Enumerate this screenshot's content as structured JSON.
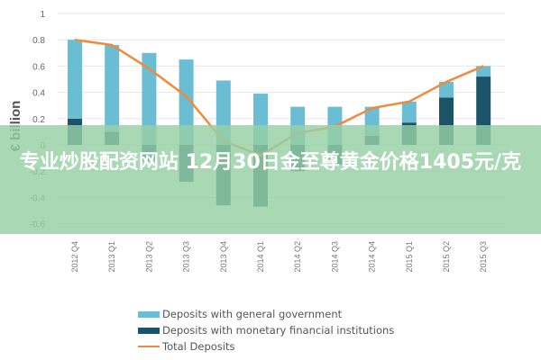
{
  "chart_data": {
    "type": "bar",
    "subtype": "stacked bar with line overlay",
    "title": "",
    "xlabel": "",
    "ylabel": "€ billion",
    "ylim": [
      -0.6,
      1
    ],
    "yticks": [
      "1",
      "0.8",
      "0.6",
      "0.4",
      "0.2",
      "0",
      "-0.2",
      "-0.4",
      "-0.6"
    ],
    "grid": true,
    "legend_position": "bottom",
    "categories": [
      "2012 Q4",
      "2013 Q1",
      "2013 Q2",
      "2013 Q3",
      "2013 Q4",
      "2014 Q1",
      "2014 Q2",
      "2014 Q3",
      "2014 Q4",
      "2015 Q1",
      "2015 Q2",
      "2015 Q3"
    ],
    "series": [
      {
        "name": "Deposits with general government",
        "type": "bar",
        "color": "#6bbdd4",
        "values": [
          0.6,
          0.66,
          0.7,
          0.65,
          0.49,
          0.39,
          0.29,
          0.29,
          0.22,
          0.16,
          0.12,
          0.08
        ]
      },
      {
        "name": "Deposits with monetary financial institutions",
        "type": "bar",
        "color": "#1b5468",
        "values": [
          0.2,
          0.1,
          -0.12,
          -0.28,
          -0.46,
          -0.47,
          -0.2,
          -0.15,
          0.07,
          0.17,
          0.36,
          0.52
        ]
      },
      {
        "name": "Total Deposits",
        "type": "line",
        "color": "#f08a3c",
        "values": [
          0.8,
          0.76,
          0.58,
          0.37,
          0.03,
          -0.08,
          0.09,
          0.14,
          0.28,
          0.33,
          0.48,
          0.6
        ]
      }
    ]
  },
  "legend": {
    "items": [
      {
        "label": "Deposits with general government",
        "color": "#6bbdd4",
        "kind": "bar"
      },
      {
        "label": "Deposits with monetary financial institutions",
        "color": "#1b5468",
        "kind": "bar"
      },
      {
        "label": "Total Deposits",
        "color": "#f08a3c",
        "kind": "line"
      }
    ]
  },
  "overlay": {
    "text": "专业炒股配资网站 12月30日金至尊黄金价格1405元/克"
  }
}
